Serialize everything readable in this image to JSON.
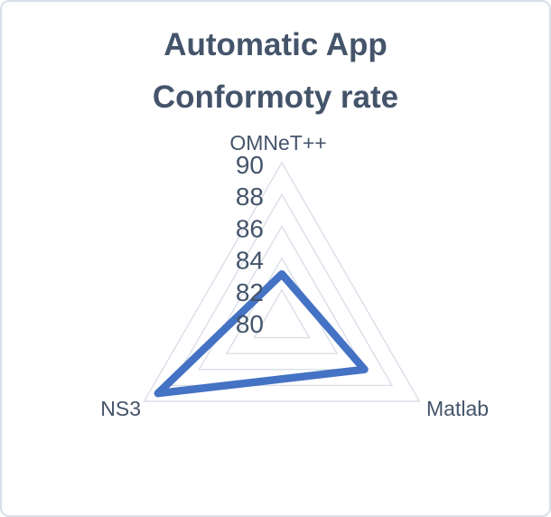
{
  "figure": {
    "background": "#FFFFFF",
    "border_color": "#D9DFE7",
    "text_color": "#44546A",
    "title_line1": "Automatic App",
    "title_line2": "Conformoty rate"
  },
  "chart_data": {
    "type": "radar",
    "title": "Automatic App Conformoty rate",
    "categories": [
      "OMNeT++",
      "Matlab",
      "NS3"
    ],
    "values": [
      83,
      86,
      89
    ],
    "axis_min": 80,
    "axis_max": 90,
    "axis_step": 2,
    "tick_labels": [
      "90",
      "88",
      "86",
      "84",
      "82",
      "80"
    ],
    "grid": true,
    "legend": "none",
    "series_color": "#4472C4",
    "grid_color": "#DADFE8",
    "label_color": "#44546A",
    "tick_color": "#44546A"
  }
}
